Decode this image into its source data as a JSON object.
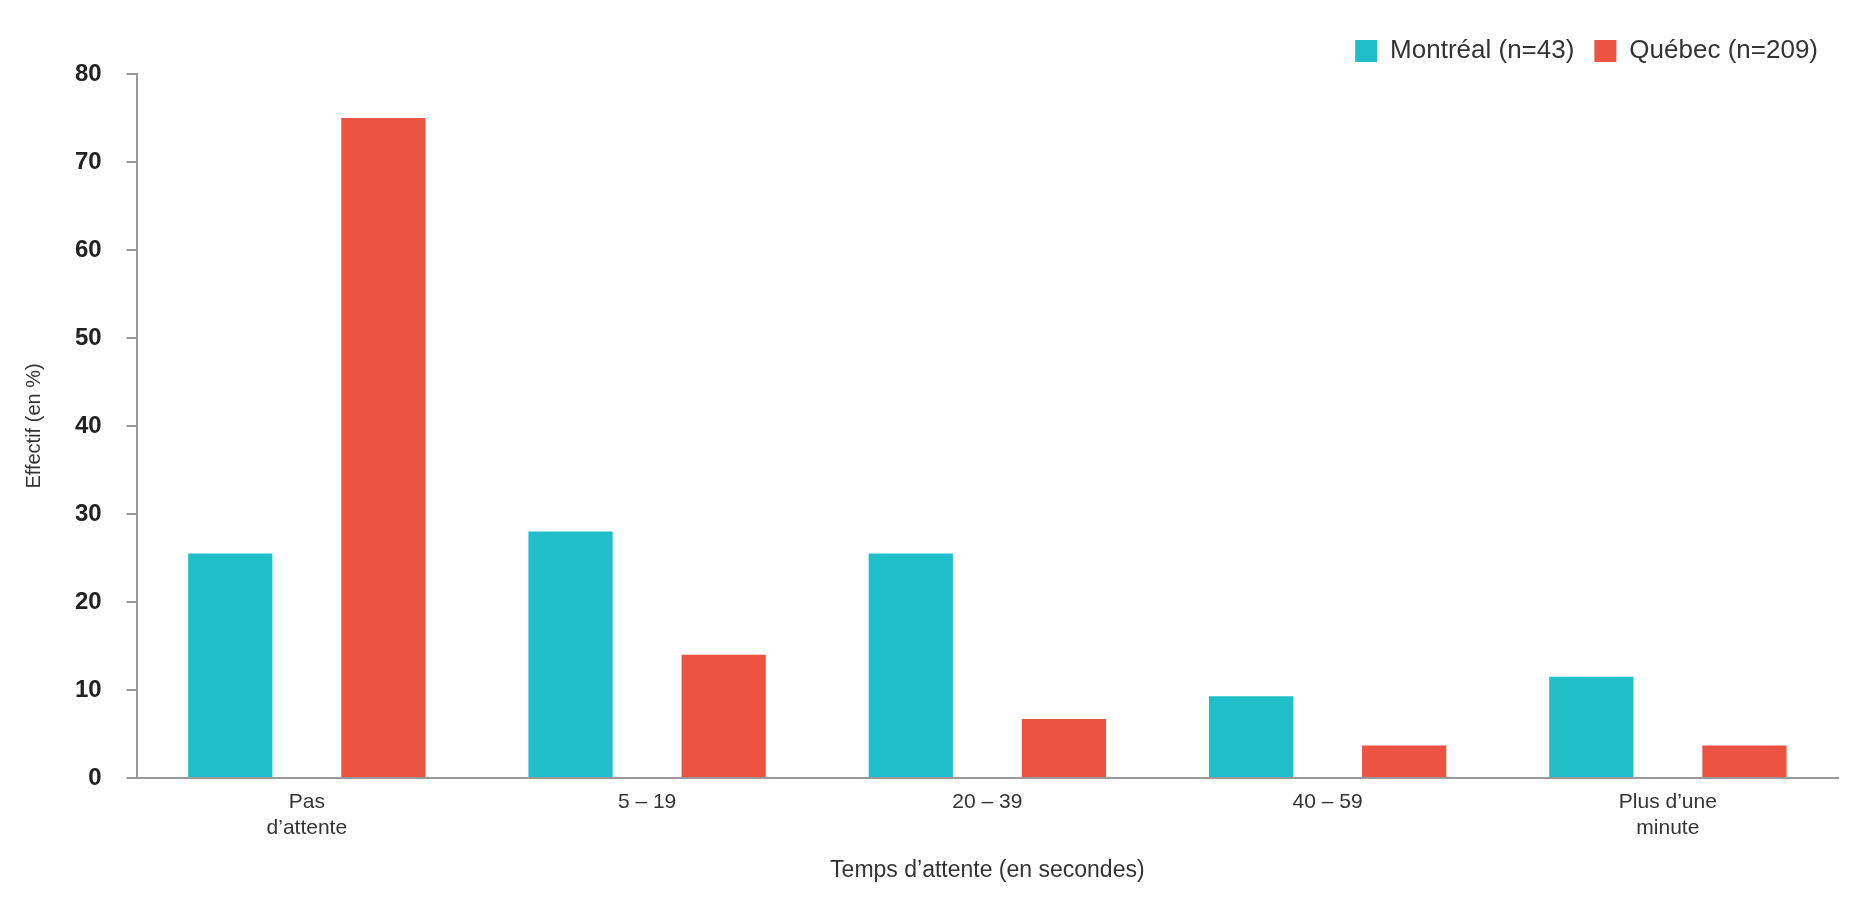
{
  "chart_data": {
    "type": "bar",
    "xlabel": "Temps d’attente (en secondes)",
    "ylabel": "Effectif (en %)",
    "categories": [
      "Pas d’attente",
      "5 – 19",
      "20 – 39",
      "40 – 59",
      "Plus d’une minute"
    ],
    "series": [
      {
        "name": "Montréal (n=43)",
        "color": "#1fbec8",
        "values": [
          25.5,
          28,
          25.5,
          9.3,
          11.5
        ]
      },
      {
        "name": "Québec (n=209)",
        "color": "#ec5340",
        "values": [
          75,
          14,
          6.7,
          3.7,
          3.7
        ]
      }
    ],
    "ylim": [
      0,
      80
    ],
    "yticks": [
      0,
      10,
      20,
      30,
      40,
      50,
      60,
      70,
      80
    ],
    "grid": false,
    "legend": "top right"
  }
}
